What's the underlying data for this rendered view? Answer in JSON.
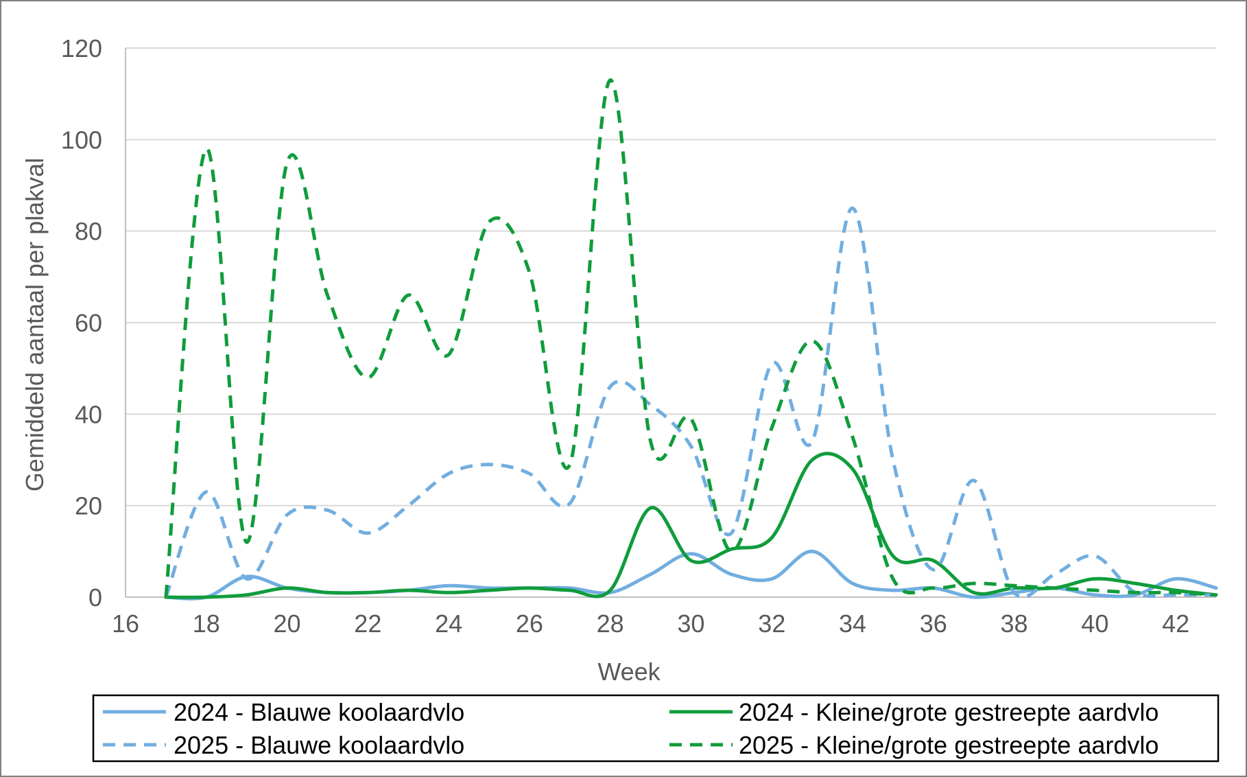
{
  "chart_data": {
    "type": "line",
    "title": "",
    "xlabel": "Week",
    "ylabel": "Gemiddeld aantaal per plakval",
    "xlim": [
      16,
      43
    ],
    "ylim": [
      0,
      120
    ],
    "xticks": [
      16,
      18,
      20,
      22,
      24,
      26,
      28,
      30,
      32,
      34,
      36,
      38,
      40,
      42
    ],
    "yticks": [
      0,
      20,
      40,
      60,
      80,
      100,
      120
    ],
    "grid": "horizontal",
    "legend_position": "bottom",
    "series": [
      {
        "name": "2024 - Blauwe koolaardvlo",
        "color": "#71aee0",
        "dash": "solid",
        "x": [
          17,
          18,
          19,
          20,
          21,
          22,
          23,
          24,
          25,
          26,
          27,
          28,
          29,
          30,
          31,
          32,
          33,
          34,
          35,
          36,
          37,
          38,
          39,
          40,
          41,
          42,
          43
        ],
        "values": [
          0,
          0,
          4.5,
          2,
          1,
          1,
          1.5,
          2.5,
          2,
          2,
          2,
          1,
          5,
          9.5,
          5,
          4,
          10,
          3,
          1.5,
          2,
          0,
          1,
          2,
          0.5,
          0.5,
          4,
          2
        ]
      },
      {
        "name": "2025 - Blauwe koolaardvlo",
        "color": "#71aee0",
        "dash": "dashed",
        "x": [
          17,
          18,
          19,
          20,
          21,
          22,
          23,
          24,
          25,
          26,
          27,
          28,
          29,
          30,
          31,
          32,
          33,
          34,
          35,
          36,
          37,
          38,
          39,
          40,
          41,
          42,
          43
        ],
        "values": [
          0,
          23,
          4,
          18,
          19,
          14,
          20,
          27,
          29,
          27,
          20.5,
          46,
          42,
          33,
          14,
          51,
          34,
          85,
          30,
          6,
          25.5,
          1,
          5,
          9,
          1,
          0.5,
          0.5
        ]
      },
      {
        "name": "2024 - Kleine/grote gestreepte aardvlo",
        "color": "#109c3c",
        "dash": "solid",
        "x": [
          17,
          18,
          19,
          20,
          21,
          22,
          23,
          24,
          25,
          26,
          27,
          28,
          29,
          30,
          31,
          32,
          33,
          34,
          35,
          36,
          37,
          38,
          39,
          40,
          41,
          42,
          43
        ],
        "values": [
          0,
          0,
          0.5,
          2,
          1,
          1,
          1.5,
          1,
          1.5,
          2,
          1.5,
          1.5,
          19.5,
          8,
          10.5,
          13,
          30,
          28,
          9,
          8,
          1,
          2,
          2,
          4,
          3,
          1.5,
          0.5
        ]
      },
      {
        "name": "2025 - Kleine/grote gestreepte aardvlo",
        "color": "#109c3c",
        "dash": "dashed",
        "x": [
          17,
          18,
          19,
          20,
          21,
          22,
          23,
          24,
          25,
          26,
          27,
          28,
          29,
          30,
          31,
          32,
          33,
          34,
          35,
          36,
          37,
          38,
          39,
          40,
          41,
          42,
          43
        ],
        "values": [
          0,
          98,
          12,
          95,
          66,
          48,
          66,
          53,
          82,
          71,
          29,
          113,
          34,
          39,
          10,
          37,
          56,
          35,
          4,
          2,
          3,
          2.5,
          2,
          1.5,
          1,
          1,
          0.5
        ]
      }
    ]
  }
}
